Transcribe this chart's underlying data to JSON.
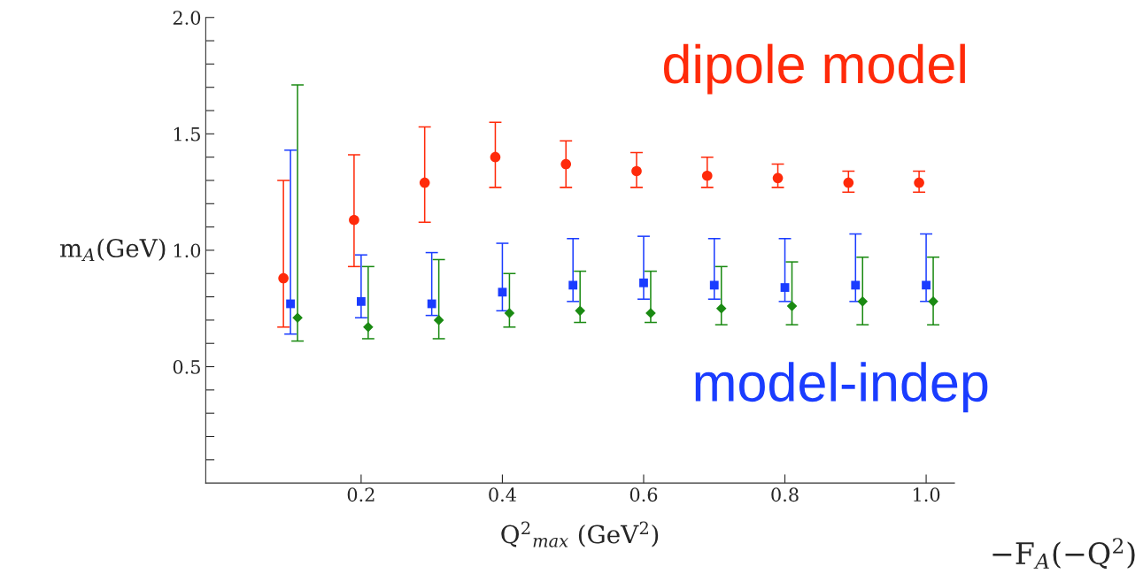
{
  "chart_data": {
    "type": "scatter",
    "xlabel": "Q$^{2}$$_{max}$ (GeV$^{2}$)",
    "ylabel": "m$_{A}$(GeV)",
    "annotations": [
      "−F$_{A}$(−Q$^{2}$)"
    ],
    "xlim": [
      -0.02,
      1.04
    ],
    "ylim": [
      0,
      2.0
    ],
    "xticks": [
      0.2,
      0.4,
      0.6,
      0.8,
      {
        "value": 1.0,
        "label": "1.0"
      }
    ],
    "yticks": [
      {
        "value": 0.1,
        "label": null
      },
      {
        "value": 0.2,
        "label": null
      },
      {
        "value": 0.3,
        "label": null
      },
      {
        "value": 0.4,
        "label": null
      },
      0.5,
      {
        "value": 0.6,
        "label": null
      },
      {
        "value": 0.7,
        "label": null
      },
      {
        "value": 0.8,
        "label": null
      },
      {
        "value": 0.9,
        "label": null
      },
      {
        "value": 1.0,
        "label": "1.0"
      },
      {
        "value": 1.1,
        "label": null
      },
      {
        "value": 1.2,
        "label": null
      },
      {
        "value": 1.3,
        "label": null
      },
      {
        "value": 1.4,
        "label": null
      },
      1.5,
      {
        "value": 1.6,
        "label": null
      },
      {
        "value": 1.7,
        "label": null
      },
      {
        "value": 1.8,
        "label": null
      },
      {
        "value": 1.9,
        "label": null
      },
      {
        "value": 2.0,
        "label": "2.0"
      }
    ],
    "grid": false,
    "legend": false,
    "series": [
      {
        "name": "dipole model",
        "color": "#ff2a0a",
        "marker": "circle",
        "x": [
          0.09,
          0.19,
          0.29,
          0.39,
          0.49,
          0.59,
          0.69,
          0.79,
          0.89,
          0.99
        ],
        "values": [
          0.88,
          1.13,
          1.29,
          1.4,
          1.37,
          1.34,
          1.32,
          1.31,
          1.29,
          1.29
        ],
        "errors": [
          [
            0.67,
            1.3
          ],
          [
            0.93,
            1.41
          ],
          [
            1.12,
            1.53
          ],
          [
            1.27,
            1.55
          ],
          [
            1.27,
            1.47
          ],
          [
            1.27,
            1.42
          ],
          [
            1.27,
            1.4
          ],
          [
            1.27,
            1.37
          ],
          [
            1.25,
            1.34
          ],
          [
            1.25,
            1.34
          ]
        ]
      },
      {
        "name": "model-indep",
        "color": "#1a3cff",
        "marker": "square",
        "x": [
          0.1,
          0.2,
          0.3,
          0.4,
          0.5,
          0.6,
          0.7,
          0.8,
          0.9,
          1.0
        ],
        "values": [
          0.77,
          0.78,
          0.77,
          0.82,
          0.85,
          0.86,
          0.85,
          0.84,
          0.85,
          0.85
        ],
        "errors": [
          [
            0.64,
            1.43
          ],
          [
            0.71,
            0.98
          ],
          [
            0.72,
            0.99
          ],
          [
            0.74,
            1.03
          ],
          [
            0.78,
            1.05
          ],
          [
            0.79,
            1.06
          ],
          [
            0.79,
            1.05
          ],
          [
            0.78,
            1.05
          ],
          [
            0.78,
            1.07
          ],
          [
            0.78,
            1.07
          ]
        ]
      },
      {
        "color": "#1a8a12",
        "marker": "diamond",
        "x": [
          0.11,
          0.21,
          0.31,
          0.41,
          0.51,
          0.61,
          0.71,
          0.81,
          0.91,
          1.01
        ],
        "values": [
          0.71,
          0.67,
          0.7,
          0.73,
          0.74,
          0.73,
          0.75,
          0.76,
          0.78,
          0.78
        ],
        "errors": [
          [
            0.61,
            1.71
          ],
          [
            0.62,
            0.93
          ],
          [
            0.62,
            0.96
          ],
          [
            0.67,
            0.9
          ],
          [
            0.69,
            0.91
          ],
          [
            0.69,
            0.91
          ],
          [
            0.68,
            0.93
          ],
          [
            0.68,
            0.95
          ],
          [
            0.68,
            0.97
          ],
          [
            0.68,
            0.97
          ]
        ]
      }
    ]
  }
}
